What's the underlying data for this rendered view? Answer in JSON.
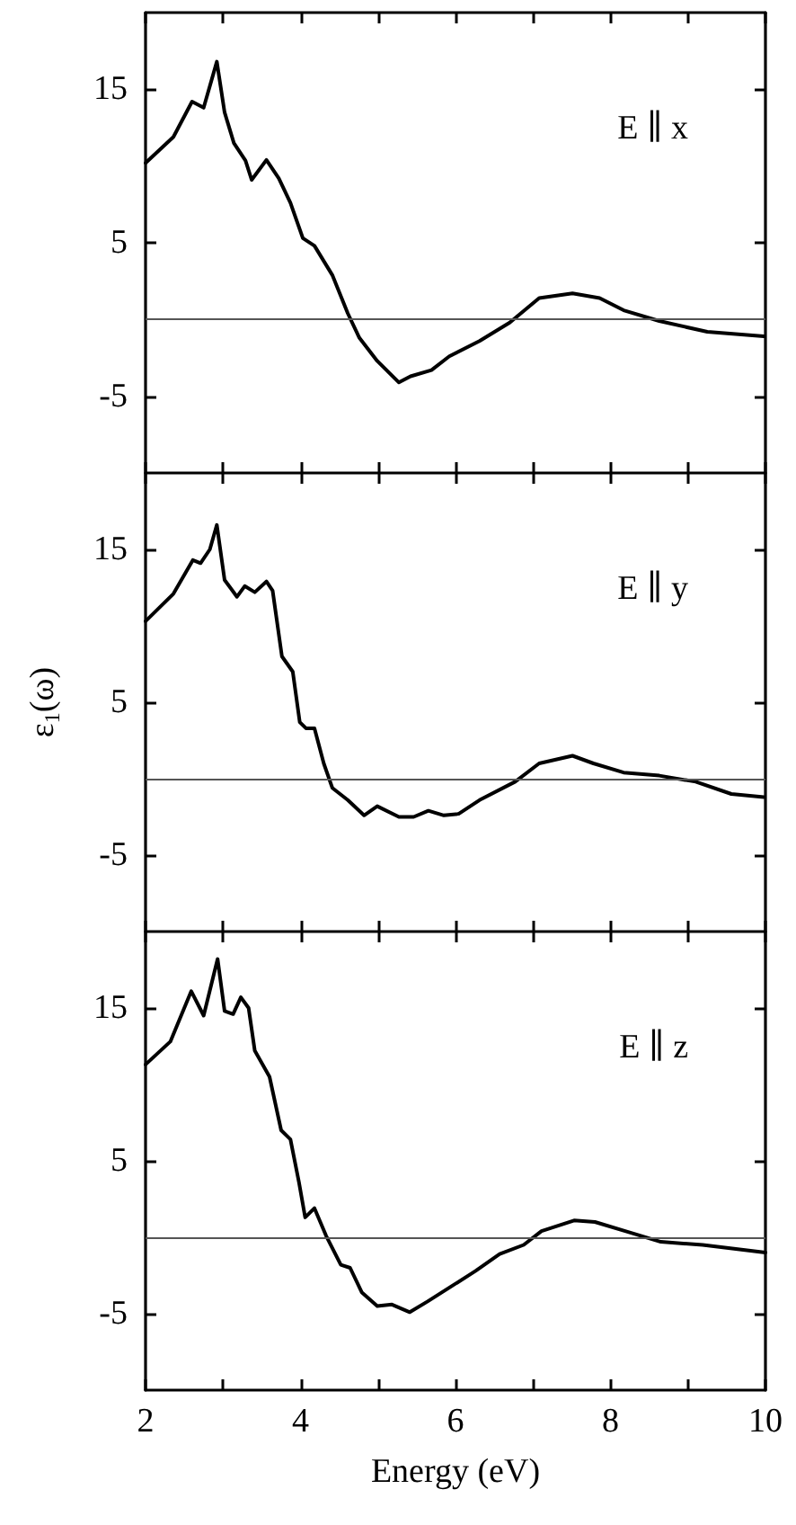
{
  "chart_data": [
    {
      "type": "line",
      "xlim": [
        2,
        10
      ],
      "xticks": [
        2,
        {
          "value": 3,
          "label": null
        },
        4,
        {
          "value": 5,
          "label": null
        },
        6,
        {
          "value": 7,
          "label": null
        },
        8,
        {
          "value": 9,
          "label": null
        },
        10
      ],
      "ylim": [
        -10,
        20
      ],
      "yticks": [
        -5,
        5,
        15
      ],
      "tick_labels": "y",
      "grid": false,
      "marker": "none",
      "line_style": "solid",
      "annotations": [
        "E ∥ x"
      ],
      "ref_lines": [
        {
          "axis": "y",
          "value": 0,
          "color": "#555555"
        }
      ],
      "series": [
        {
          "color": "#000000",
          "x": [
            2.0,
            2.36,
            2.6,
            2.75,
            2.92,
            3.02,
            3.14,
            3.29,
            3.37,
            3.56,
            3.72,
            3.87,
            4.03,
            4.18,
            4.41,
            4.61,
            4.76,
            4.99,
            5.27,
            5.42,
            5.69,
            5.92,
            6.31,
            6.7,
            7.08,
            7.51,
            7.86,
            8.17,
            8.63,
            9.25,
            9.98
          ],
          "values": [
            10.2,
            11.9,
            14.2,
            13.8,
            16.8,
            13.5,
            11.5,
            10.35,
            9.1,
            10.4,
            9.2,
            7.6,
            5.3,
            4.8,
            2.9,
            0.4,
            -1.2,
            -2.7,
            -4.1,
            -3.7,
            -3.3,
            -2.4,
            -1.4,
            -0.2,
            1.4,
            1.7,
            1.4,
            0.6,
            -0.1,
            -0.8,
            -1.1
          ]
        }
      ]
    },
    {
      "type": "line",
      "xlim": [
        2,
        10
      ],
      "xticks": [
        2,
        {
          "value": 3,
          "label": null
        },
        4,
        {
          "value": 5,
          "label": null
        },
        6,
        {
          "value": 7,
          "label": null
        },
        8,
        {
          "value": 9,
          "label": null
        },
        10
      ],
      "ylim": [
        -10,
        20
      ],
      "yticks": [
        -5,
        5,
        15
      ],
      "tick_labels": "y",
      "ylabel": "ε$_{1}$(ω)",
      "grid": false,
      "marker": "none",
      "line_style": "solid",
      "annotations": [
        "E ∥ y"
      ],
      "ref_lines": [
        {
          "axis": "y",
          "value": 0,
          "color": "#555555"
        }
      ],
      "series": [
        {
          "color": "#000000",
          "x": [
            2.0,
            2.36,
            2.61,
            2.71,
            2.83,
            2.92,
            3.02,
            3.18,
            3.28,
            3.41,
            3.56,
            3.64,
            3.76,
            3.9,
            3.99,
            4.07,
            4.18,
            4.3,
            4.41,
            4.61,
            4.82,
            4.99,
            5.27,
            5.46,
            5.65,
            5.85,
            6.04,
            6.31,
            6.77,
            7.08,
            7.51,
            7.78,
            8.17,
            8.63,
            9.1,
            9.56,
            9.98
          ],
          "values": [
            10.3,
            12.1,
            14.3,
            14.1,
            15,
            16.6,
            13.0,
            11.9,
            12.6,
            12.2,
            12.9,
            12.3,
            8.0,
            7.0,
            3.7,
            3.3,
            3.3,
            1.0,
            -0.6,
            -1.4,
            -2.4,
            -1.8,
            -2.5,
            -2.5,
            -2.1,
            -2.4,
            -2.3,
            -1.4,
            -0.2,
            1.0,
            1.5,
            1.0,
            0.4,
            0.2,
            -0.2,
            -1.0,
            -1.2
          ]
        }
      ]
    },
    {
      "type": "line",
      "xlabel": "Energy (eV)",
      "xlim": [
        2,
        10
      ],
      "xticks": [
        2,
        {
          "value": 3,
          "label": null
        },
        4,
        {
          "value": 5,
          "label": null
        },
        6,
        {
          "value": 7,
          "label": null
        },
        8,
        {
          "value": 9,
          "label": null
        },
        10
      ],
      "ylim": [
        -10,
        20
      ],
      "yticks": [
        -5,
        5,
        15
      ],
      "grid": false,
      "marker": "none",
      "line_style": "solid",
      "annotations": [
        "E ∥ z"
      ],
      "ref_lines": [
        {
          "axis": "y",
          "value": 0,
          "color": "#555555"
        }
      ],
      "series": [
        {
          "color": "#000000",
          "x": [
            2.0,
            2.32,
            2.59,
            2.75,
            2.93,
            3.02,
            3.13,
            3.23,
            3.33,
            3.41,
            3.6,
            3.75,
            3.87,
            3.98,
            4.06,
            4.18,
            4.33,
            4.52,
            4.64,
            4.79,
            4.99,
            5.18,
            5.41,
            5.64,
            5.95,
            6.26,
            6.57,
            6.88,
            7.11,
            7.53,
            7.8,
            8.19,
            8.65,
            9.19,
            10.0
          ],
          "values": [
            11.3,
            12.8,
            16.1,
            14.5,
            18.2,
            14.8,
            14.6,
            15.7,
            15.0,
            12.2,
            10.5,
            7.0,
            6.4,
            3.6,
            1.3,
            1.9,
            0.1,
            -1.8,
            -2.0,
            -3.6,
            -4.5,
            -4.4,
            -4.9,
            -4.2,
            -3.2,
            -2.2,
            -1.1,
            -0.5,
            0.4,
            1.1,
            1.0,
            0.4,
            -0.3,
            -0.5,
            -1.0
          ]
        }
      ]
    }
  ]
}
